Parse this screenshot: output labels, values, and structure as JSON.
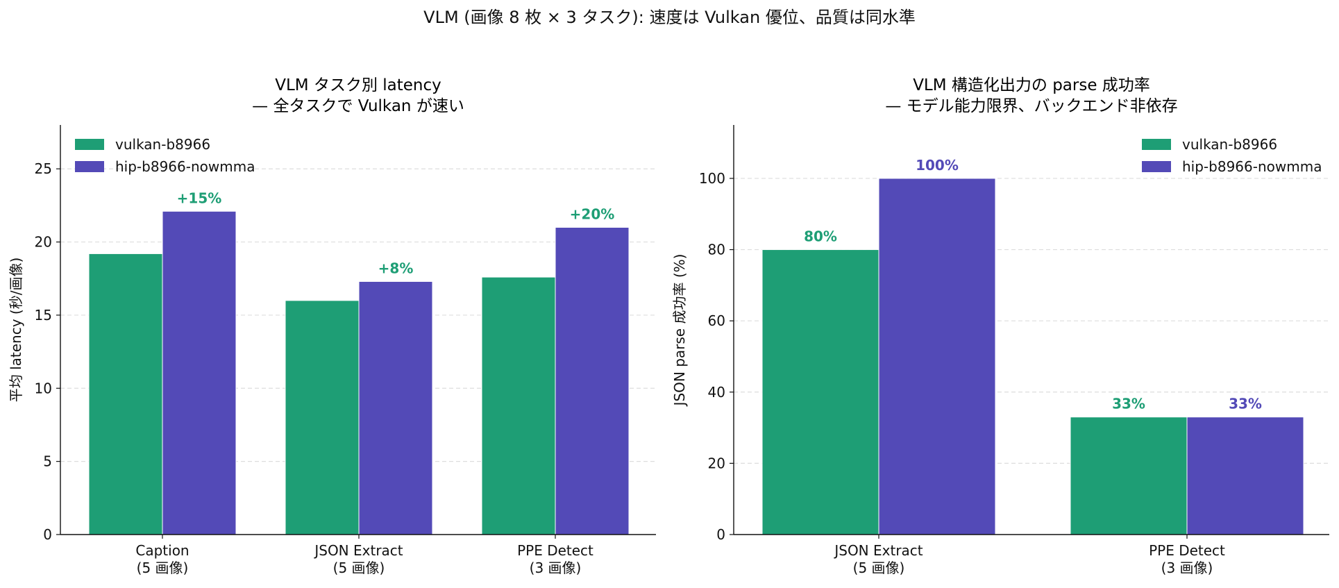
{
  "suptitle": "VLM (画像 8 枚 × 3 タスク): 速度は Vulkan 優位、品質は同水準",
  "colors": {
    "vulkan": "#1e9e75",
    "hip": "#534ab7",
    "grid": "#dddddd",
    "axis": "#111111"
  },
  "chart_data": [
    {
      "type": "bar",
      "title": [
        "VLM タスク別 latency",
        "— 全タスクで Vulkan が速い"
      ],
      "xlabel": "",
      "ylabel": "平均 latency (秒/画像)",
      "ylim": [
        0,
        28
      ],
      "yticks": [
        0,
        5,
        10,
        15,
        20,
        25
      ],
      "grid": true,
      "legend_position": "top-left",
      "categories": [
        [
          "Caption",
          "(5 画像)"
        ],
        [
          "JSON Extract",
          "(5 画像)"
        ],
        [
          "PPE Detect",
          "(3 画像)"
        ]
      ],
      "series": [
        {
          "name": "vulkan-b8966",
          "color": "#1e9e75",
          "values": [
            19.2,
            16.0,
            17.6
          ]
        },
        {
          "name": "hip-b8966-nowmma",
          "color": "#534ab7",
          "values": [
            22.1,
            17.3,
            21.0
          ]
        }
      ],
      "annotations": [
        {
          "category": 0,
          "series": 1,
          "text": "+15%",
          "color": "#1e9e75"
        },
        {
          "category": 1,
          "series": 1,
          "text": "+8%",
          "color": "#1e9e75"
        },
        {
          "category": 2,
          "series": 1,
          "text": "+20%",
          "color": "#1e9e75"
        }
      ]
    },
    {
      "type": "bar",
      "title": [
        "VLM 構造化出力の parse 成功率",
        "— モデル能力限界、バックエンド非依存"
      ],
      "xlabel": "",
      "ylabel": "JSON parse 成功率 (%)",
      "ylim": [
        0,
        115
      ],
      "yticks": [
        0,
        20,
        40,
        60,
        80,
        100
      ],
      "grid": true,
      "legend_position": "top-right",
      "categories": [
        [
          "JSON Extract",
          "(5 画像)"
        ],
        [
          "PPE Detect",
          "(3 画像)"
        ]
      ],
      "series": [
        {
          "name": "vulkan-b8966",
          "color": "#1e9e75",
          "values": [
            80,
            33
          ]
        },
        {
          "name": "hip-b8966-nowmma",
          "color": "#534ab7",
          "values": [
            100,
            33
          ]
        }
      ],
      "annotations": [
        {
          "category": 0,
          "series": 0,
          "text": "80%",
          "color": "#1e9e75"
        },
        {
          "category": 0,
          "series": 1,
          "text": "100%",
          "color": "#534ab7"
        },
        {
          "category": 1,
          "series": 0,
          "text": "33%",
          "color": "#1e9e75"
        },
        {
          "category": 1,
          "series": 1,
          "text": "33%",
          "color": "#534ab7"
        }
      ]
    }
  ]
}
